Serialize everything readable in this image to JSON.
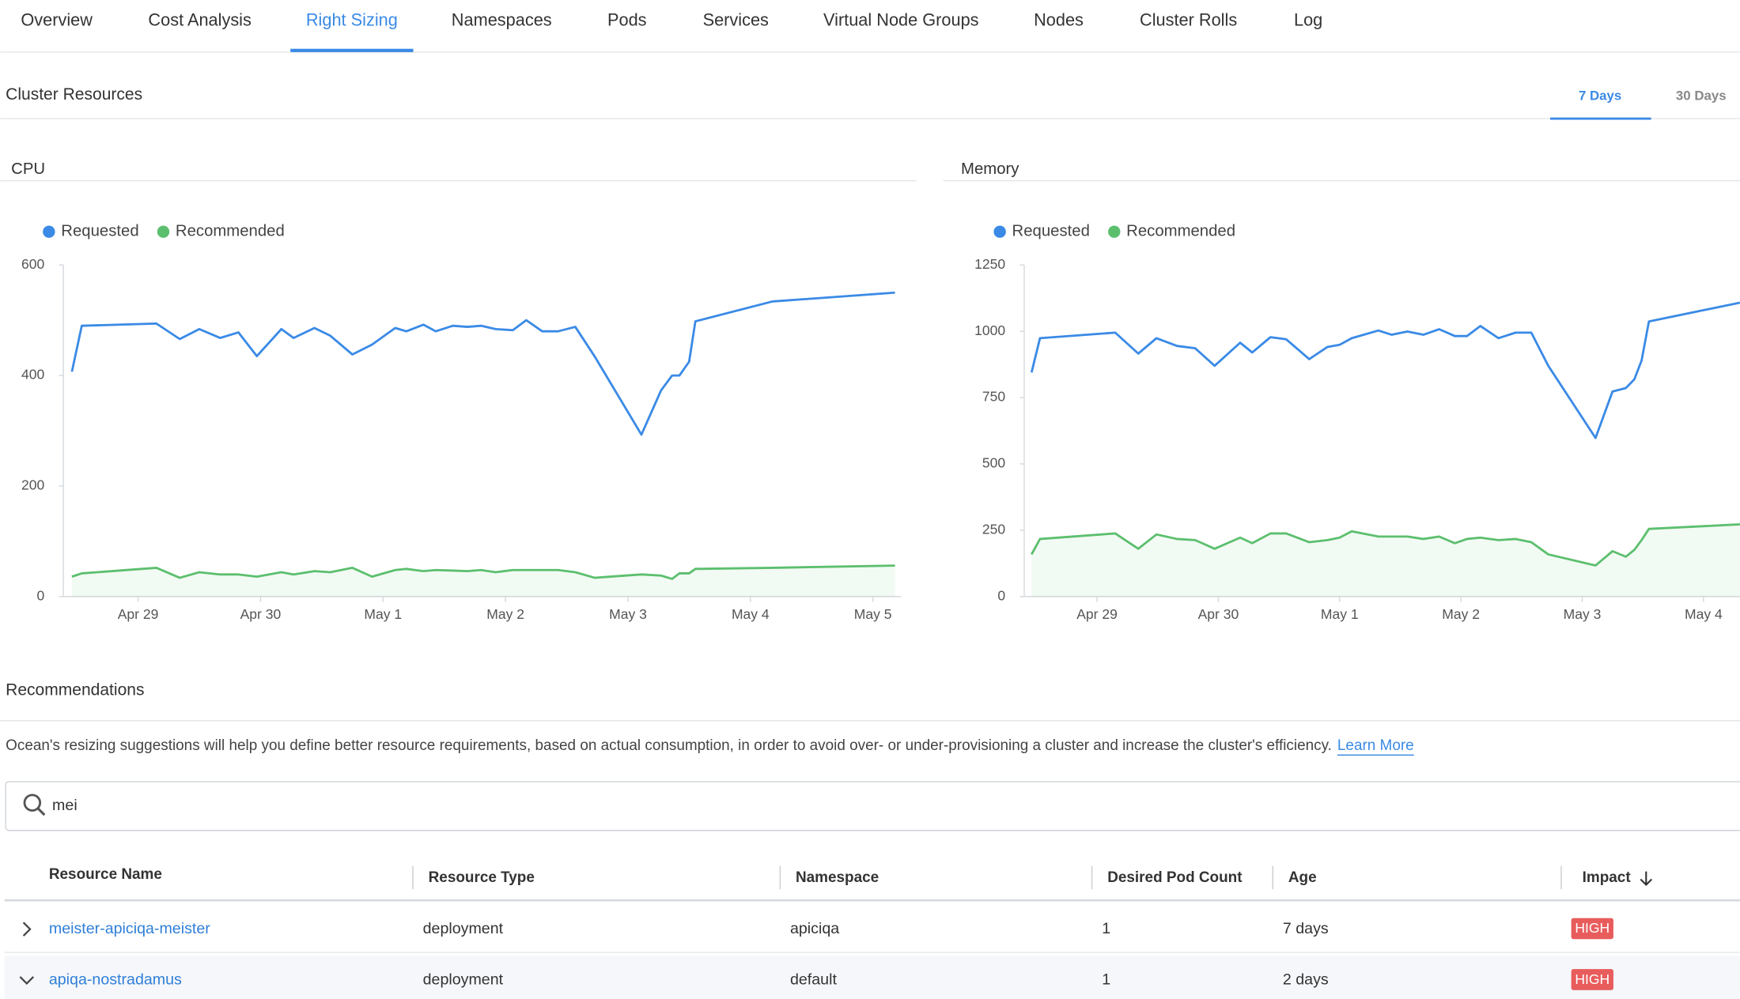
{
  "tabs": [
    "Overview",
    "Cost Analysis",
    "Right Sizing",
    "Namespaces",
    "Pods",
    "Services",
    "Virtual Node Groups",
    "Nodes",
    "Cluster Rolls",
    "Log"
  ],
  "active_tab": 2,
  "section_title": "Cluster Resources",
  "range_tabs": [
    "7 Days",
    "30 Days"
  ],
  "active_range": 0,
  "chart_data": [
    {
      "type": "line",
      "title": "CPU",
      "legend": "top-left",
      "x": [
        -0.54,
        -0.46,
        0.15,
        0.34,
        0.5,
        0.67,
        0.82,
        0.97,
        1.17,
        1.27,
        1.44,
        1.57,
        1.75,
        1.91,
        2.1,
        2.19,
        2.33,
        2.43,
        2.57,
        2.69,
        2.8,
        2.92,
        3.06,
        3.17,
        3.3,
        3.43,
        3.57,
        3.73,
        4.11,
        4.27,
        4.36,
        4.42,
        4.5,
        4.55,
        5.18,
        6.18
      ],
      "series": [
        {
          "name": "Requested",
          "color": "#3a8ae6",
          "area": false,
          "values": [
            407,
            490,
            494,
            466,
            484,
            468,
            478,
            435,
            484,
            468,
            486,
            472,
            438,
            456,
            486,
            480,
            492,
            480,
            490,
            488,
            490,
            484,
            482,
            500,
            480,
            480,
            488,
            434,
            293,
            373,
            400,
            400,
            425,
            498,
            534,
            550
          ]
        },
        {
          "name": "Recommended",
          "color": "#5cbf6e",
          "area": true,
          "values": [
            36,
            42,
            52,
            34,
            44,
            40,
            40,
            36,
            44,
            40,
            46,
            44,
            52,
            36,
            48,
            50,
            46,
            48,
            47,
            46,
            48,
            44,
            48,
            48,
            48,
            48,
            44,
            34,
            40,
            38,
            32,
            42,
            42,
            50,
            52,
            56
          ]
        }
      ],
      "xlim": [
        -0.61,
        6.23
      ],
      "xticks": [
        {
          "value": 0,
          "label": "Apr 29"
        },
        {
          "value": 1,
          "label": "Apr 30"
        },
        {
          "value": 2,
          "label": "May 1"
        },
        {
          "value": 3,
          "label": "May 2"
        },
        {
          "value": 4,
          "label": "May 3"
        },
        {
          "value": 5,
          "label": "May 4"
        },
        {
          "value": 6,
          "label": "May 5"
        }
      ],
      "ylim": [
        0,
        600
      ],
      "yticks": [
        0,
        200,
        400,
        600
      ]
    },
    {
      "type": "line",
      "title": "Memory",
      "legend": "top-left",
      "x": [
        -0.54,
        -0.47,
        0.15,
        0.34,
        0.49,
        0.66,
        0.81,
        0.97,
        1.18,
        1.28,
        1.43,
        1.56,
        1.75,
        1.9,
        2.0,
        2.1,
        2.32,
        2.43,
        2.56,
        2.69,
        2.82,
        2.95,
        3.05,
        3.16,
        3.31,
        3.45,
        3.58,
        3.72,
        4.11,
        4.25,
        4.36,
        4.43,
        4.49,
        4.55,
        5.3
      ],
      "series": [
        {
          "name": "Requested",
          "color": "#3a8ae6",
          "area": false,
          "values": [
            845,
            974,
            995,
            916,
            974,
            945,
            936,
            870,
            957,
            920,
            978,
            970,
            895,
            941,
            949,
            974,
            1003,
            987,
            999,
            987,
            1008,
            982,
            982,
            1020,
            974,
            995,
            995,
            870,
            598,
            773,
            786,
            819,
            890,
            1037,
            1108
          ]
        },
        {
          "name": "Recommended",
          "color": "#5cbf6e",
          "area": true,
          "values": [
            159,
            217,
            238,
            180,
            234,
            217,
            213,
            180,
            222,
            201,
            238,
            238,
            205,
            213,
            222,
            246,
            226,
            226,
            226,
            217,
            226,
            201,
            217,
            222,
            213,
            217,
            205,
            159,
            117,
            171,
            150,
            176,
            213,
            255,
            272
          ]
        }
      ],
      "xlim": [
        -0.6,
        5.3
      ],
      "xticks": [
        {
          "value": 0,
          "label": "Apr 29"
        },
        {
          "value": 1,
          "label": "Apr 30"
        },
        {
          "value": 2,
          "label": "May 1"
        },
        {
          "value": 3,
          "label": "May 2"
        },
        {
          "value": 4,
          "label": "May 3"
        },
        {
          "value": 5,
          "label": "May 4"
        }
      ],
      "ylim": [
        0,
        1250
      ],
      "yticks": [
        0,
        250,
        500,
        750,
        1000,
        1250
      ]
    }
  ],
  "recommendations": {
    "title": "Recommendations",
    "description": "Ocean's resizing suggestions will help you define better resource requirements, based on actual consumption, in order to avoid over- or under-provisioning a cluster and increase the cluster's efficiency.",
    "link": "Learn More"
  },
  "search": {
    "value": "mei"
  },
  "table": {
    "columns": [
      "Resource Name",
      "Resource Type",
      "Namespace",
      "Desired Pod Count",
      "Age",
      "Impact"
    ],
    "sort_column": 5,
    "rows": [
      {
        "expanded": false,
        "cells": [
          "meister-apiciqa-meister",
          "deployment",
          "apiciqa",
          1,
          "7 days",
          "HIGH"
        ]
      },
      {
        "expanded": true,
        "cells": [
          "apiqa-nostradamus",
          "deployment",
          "default",
          1,
          "2 days",
          "HIGH"
        ]
      }
    ]
  }
}
